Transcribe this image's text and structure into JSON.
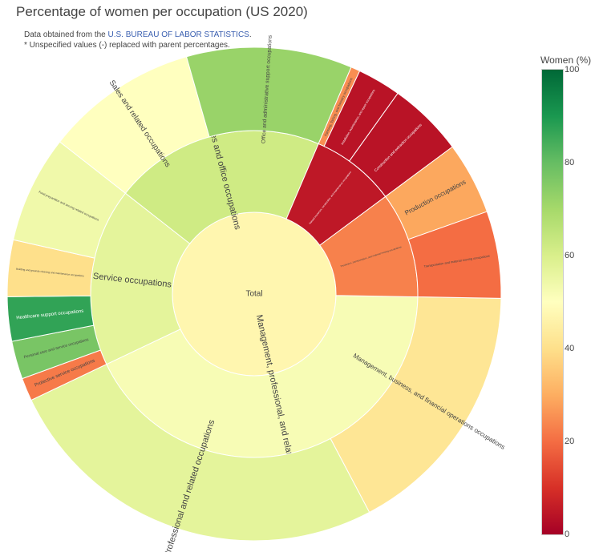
{
  "title": "Percentage of women per occupation (US 2020)",
  "note": {
    "line1_prefix": "Data obtained from the ",
    "line1_link": "U.S. BUREAU OF LABOR STATISTICS",
    "line1_suffix": ".",
    "line2": "* Unspecified values (-) replaced with parent percentages."
  },
  "colorbar": {
    "title": "Women (%)",
    "ticks": [
      "100",
      "80",
      "60",
      "40",
      "20",
      "0"
    ],
    "tick_values": [
      100,
      80,
      60,
      40,
      20,
      0
    ]
  },
  "chart_data": {
    "type": "sunburst",
    "root": {
      "label": "Total",
      "women_pct": 47
    },
    "colorscale": [
      "#a50026",
      "#d73027",
      "#f46d43",
      "#fdae61",
      "#fee08b",
      "#ffffbf",
      "#d9ef8b",
      "#a6d96a",
      "#66bd63",
      "#1a9850",
      "#006837"
    ],
    "color_range": [
      0,
      100
    ],
    "categories": [
      {
        "label": "Management, professional, and related occupations",
        "share": 0.4265,
        "women_pct": 52,
        "children": [
          {
            "label": "Management, business, and financial operations occupations",
            "share": 0.17,
            "women_pct": 42
          },
          {
            "label": "Professional and related occupations",
            "share": 0.2565,
            "women_pct": 57
          }
        ]
      },
      {
        "label": "Service occupations",
        "share": 0.1765,
        "women_pct": 57,
        "children": [
          {
            "label": "Protective service occupations",
            "share": 0.015,
            "women_pct": 22
          },
          {
            "label": "Personal care and service occupations",
            "share": 0.025,
            "women_pct": 77
          },
          {
            "label": "Healthcare support occupations",
            "share": 0.029,
            "women_pct": 87
          },
          {
            "label": "Building and grounds cleaning and maintenance occupations",
            "share": 0.037,
            "women_pct": 40
          },
          {
            "label": "Food preparation and serving related occupations",
            "share": 0.0705,
            "women_pct": 54
          }
        ]
      },
      {
        "label": "Sales and office occupations",
        "share": 0.2085,
        "women_pct": 62,
        "children": [
          {
            "label": "Sales and related occupations",
            "share": 0.1,
            "women_pct": 50
          },
          {
            "label": "Office and administrative support occupations",
            "share": 0.1085,
            "women_pct": 72
          }
        ]
      },
      {
        "label": "Natural resources, construction, and maintenance occupations",
        "share": 0.084,
        "women_pct": 5,
        "children": [
          {
            "label": "Farming, fishing, and forestry occupations",
            "share": 0.006,
            "women_pct": 25
          },
          {
            "label": "Installation, maintenance, and repair occupations",
            "share": 0.0285,
            "women_pct": 4
          },
          {
            "label": "Construction and extraction occupations",
            "share": 0.0495,
            "women_pct": 4
          }
        ]
      },
      {
        "label": "Production, transportation, and material moving occupations",
        "share": 0.1045,
        "women_pct": 23,
        "children": [
          {
            "label": "Production occupations",
            "share": 0.0475,
            "women_pct": 29
          },
          {
            "label": "Transportation and material moving occupations",
            "share": 0.057,
            "women_pct": 20
          }
        ]
      }
    ]
  }
}
